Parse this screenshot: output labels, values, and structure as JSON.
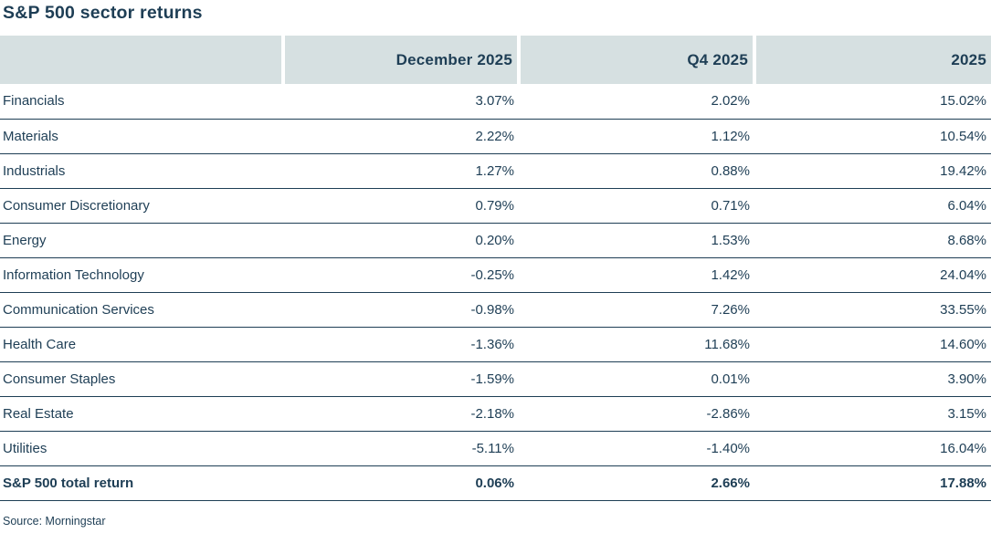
{
  "title": "S&P 500 sector returns",
  "table": {
    "columns": [
      "December 2025",
      "Q4 2025",
      "2025"
    ],
    "rows": [
      {
        "label": "Financials",
        "values": [
          "3.07%",
          "2.02%",
          "15.02%"
        ]
      },
      {
        "label": "Materials",
        "values": [
          "2.22%",
          "1.12%",
          "10.54%"
        ]
      },
      {
        "label": "Industrials",
        "values": [
          "1.27%",
          "0.88%",
          "19.42%"
        ]
      },
      {
        "label": "Consumer Discretionary",
        "values": [
          "0.79%",
          "0.71%",
          "6.04%"
        ]
      },
      {
        "label": "Energy",
        "values": [
          "0.20%",
          "1.53%",
          "8.68%"
        ]
      },
      {
        "label": "Information Technology",
        "values": [
          "-0.25%",
          "1.42%",
          "24.04%"
        ]
      },
      {
        "label": "Communication Services",
        "values": [
          "-0.98%",
          "7.26%",
          "33.55%"
        ]
      },
      {
        "label": "Health Care",
        "values": [
          "-1.36%",
          "11.68%",
          "14.60%"
        ]
      },
      {
        "label": "Consumer Staples",
        "values": [
          "-1.59%",
          "0.01%",
          "3.90%"
        ]
      },
      {
        "label": "Real Estate",
        "values": [
          "-2.18%",
          "-2.86%",
          "3.15%"
        ]
      },
      {
        "label": "Utilities",
        "values": [
          "-5.11%",
          "-1.40%",
          "16.04%"
        ]
      }
    ],
    "total_row": {
      "label": "S&P 500 total return",
      "values": [
        "0.06%",
        "2.66%",
        "17.88%"
      ]
    }
  },
  "source": "Source: Morningstar",
  "colors": {
    "text": "#1e3e55",
    "header_bg": "#d6e0e1",
    "row_border": "#1e3e55",
    "background": "#ffffff"
  },
  "chart_data": {
    "type": "table",
    "title": "S&P 500 sector returns",
    "categories": [
      "Financials",
      "Materials",
      "Industrials",
      "Consumer Discretionary",
      "Energy",
      "Information Technology",
      "Communication Services",
      "Health Care",
      "Consumer Staples",
      "Real Estate",
      "Utilities"
    ],
    "series": [
      {
        "name": "December 2025",
        "values": [
          3.07,
          2.22,
          1.27,
          0.79,
          0.2,
          -0.25,
          -0.98,
          -1.36,
          -1.59,
          -2.18,
          -5.11
        ]
      },
      {
        "name": "Q4 2025",
        "values": [
          2.02,
          1.12,
          0.88,
          0.71,
          1.53,
          1.42,
          7.26,
          11.68,
          0.01,
          -2.86,
          -1.4
        ]
      },
      {
        "name": "2025",
        "values": [
          15.02,
          10.54,
          19.42,
          6.04,
          8.68,
          24.04,
          33.55,
          14.6,
          3.9,
          3.15,
          16.04
        ]
      }
    ],
    "total": {
      "name": "S&P 500 total return",
      "values": [
        0.06,
        2.66,
        17.88
      ]
    },
    "units": "percent",
    "source": "Source: Morningstar",
    "legend_position": "none",
    "grid": "horizontal-row-rules"
  }
}
